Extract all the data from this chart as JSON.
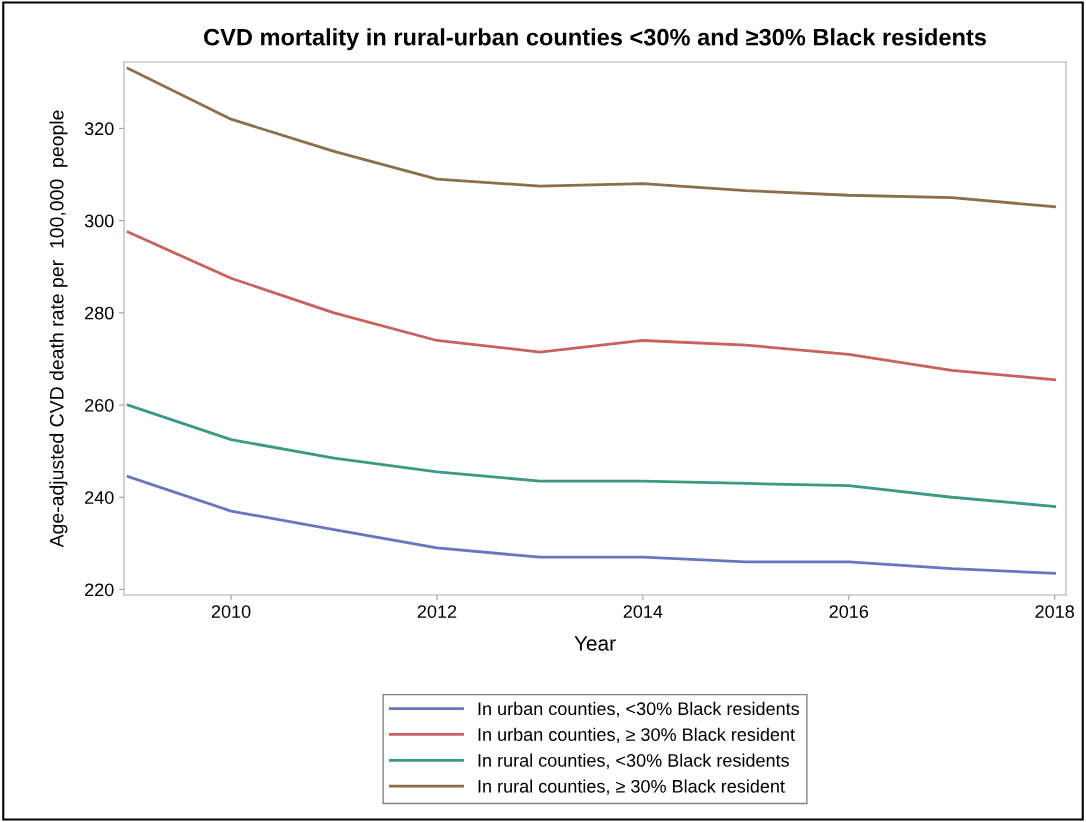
{
  "chart_data": {
    "type": "line",
    "title": "CVD mortality in rural-urban counties <30% and ≥30% Black residents",
    "xlabel": "Year",
    "ylabel": "Age-adjusted CVD death rate per  100,000  people",
    "x": [
      2009,
      2010,
      2011,
      2012,
      2013,
      2014,
      2015,
      2016,
      2017,
      2018
    ],
    "series": [
      {
        "name": "In urban counties, <30% Black residents",
        "color": "#6a75c0",
        "values": [
          244.5,
          237,
          233,
          229,
          227,
          227,
          226,
          226,
          224.5,
          223.5
        ]
      },
      {
        "name": "In urban counties, ≥ 30% Black resident",
        "color": "#c8625e",
        "values": [
          297.5,
          287.5,
          280,
          274,
          271.5,
          274,
          273,
          271,
          267.5,
          265.5
        ]
      },
      {
        "name": "In rural counties, <30% Black residents",
        "color": "#3a9a86",
        "values": [
          260,
          252.5,
          248.5,
          245.5,
          243.5,
          243.5,
          243,
          242.5,
          240,
          238
        ]
      },
      {
        "name": "In rural counties, ≥ 30% Black resident",
        "color": "#8b6f4a",
        "values": [
          333,
          322,
          315,
          309,
          307.5,
          308,
          306.5,
          305.5,
          305,
          303
        ]
      }
    ],
    "xlim": [
      2008.96,
      2018.11
    ],
    "xticks": [
      2010,
      2012,
      2014,
      2016,
      2018
    ],
    "ylim": [
      218.8,
      334.4
    ],
    "yticks": [
      220,
      240,
      260,
      280,
      300,
      320
    ],
    "grid": false,
    "legend": "bottom",
    "marker": "none",
    "line_style": "solid"
  }
}
